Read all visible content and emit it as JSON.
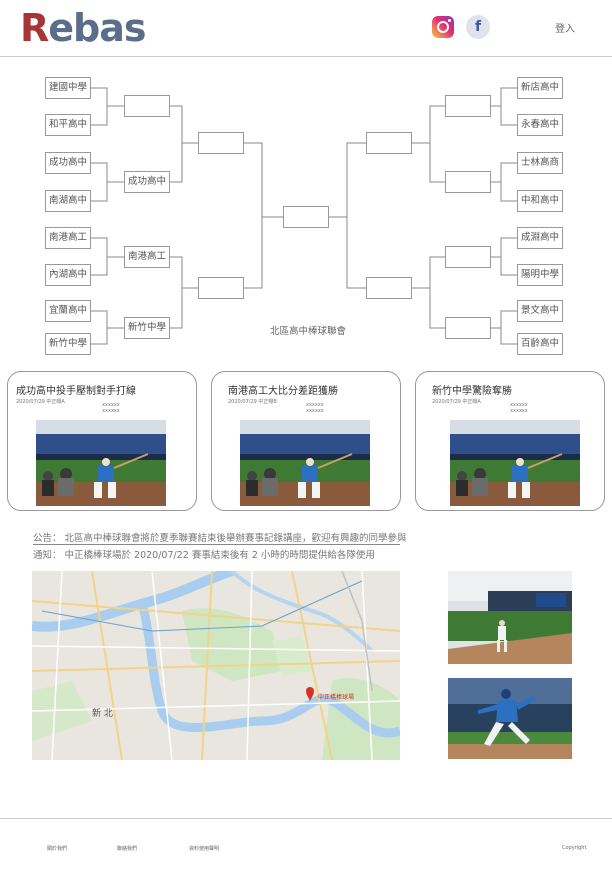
{
  "header": {
    "logo": "Rebas",
    "login_label": "登入",
    "social": [
      "instagram-icon",
      "facebook-icon"
    ],
    "fb_letter": "f"
  },
  "bracket": {
    "left_teams": [
      "建國中學",
      "和平高中",
      "成功高中",
      "南湖高中",
      "南港高工",
      "內湖高中",
      "宜蘭高中",
      "新竹中學"
    ],
    "right_teams": [
      "新店高中",
      "永春高中",
      "士林高商",
      "中和高中",
      "成淵高中",
      "陽明中學",
      "景文高中",
      "百齡高中"
    ],
    "left_round2": [
      "",
      "成功高中",
      "南港高工",
      "新竹中學"
    ],
    "right_round2": [
      "",
      "",
      "",
      ""
    ],
    "left_semi": [
      "",
      ""
    ],
    "right_semi": [
      "",
      ""
    ],
    "final": "",
    "league_name": "北區高中棒球聯會"
  },
  "news": [
    {
      "title": "成功高中投手壓制對手打線",
      "date": "2020/07/29 中正曝A",
      "placeholder": "xxxxxx"
    },
    {
      "title": "南港高工大比分差距獲勝",
      "date": "2020/07/29 中正曝B",
      "placeholder": "xxxxxx"
    },
    {
      "title": "新竹中學驚險奪勝",
      "date": "2020/07/29 中正曝A",
      "placeholder": "xxxxxx"
    }
  ],
  "notices": {
    "announcement": "公告：  北區高中棒球聯會將於夏季聯賽結束後舉辦賽事記錄講座，歡迎有興趣的同學參與",
    "notification": "通知：  中正橋棒球場於 2020/07/22 賽事結束後有 2 小時的時間提供給各隊使用"
  },
  "map": {
    "label": "新 北",
    "pin_label": "中正橋棒球場"
  },
  "footer": {
    "links": [
      "關於我們",
      "聯絡我們",
      "資料使用聲明"
    ],
    "copyright": "Copyright"
  },
  "colors": {
    "logo_red": "#a83535",
    "logo_blue": "#5a6d8a",
    "field_green": "#3e7a34",
    "jersey_blue": "#2d6fc0"
  }
}
